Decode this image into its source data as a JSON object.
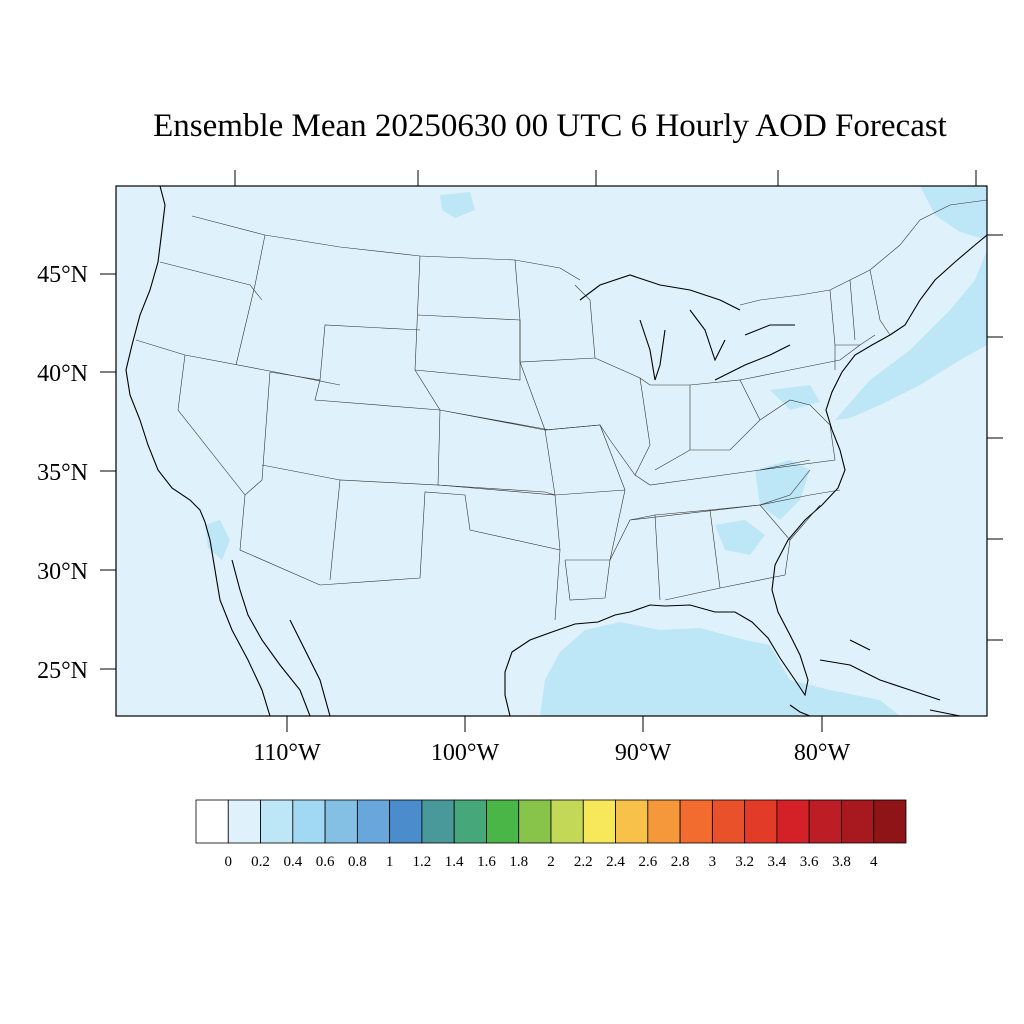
{
  "title": "Ensemble Mean 20250630 00 UTC 6 Hourly AOD Forecast",
  "map": {
    "background_color": "#dff2fb",
    "lat_labels": [
      "45°N",
      "40°N",
      "35°N",
      "30°N",
      "25°N"
    ],
    "lon_labels": [
      "110°W",
      "100°W",
      "90°W",
      "80°W"
    ]
  },
  "colorbar": {
    "labels": [
      "0",
      "0.2",
      "0.4",
      "0.6",
      "0.8",
      "1",
      "1.2",
      "1.4",
      "1.6",
      "1.8",
      "2",
      "2.2",
      "2.4",
      "2.6",
      "2.8",
      "3",
      "3.2",
      "3.4",
      "3.6",
      "3.8",
      "4"
    ],
    "colors": [
      "#ffffff",
      "#dff2fb",
      "#bde6f7",
      "#a1d9f4",
      "#84bfe4",
      "#69a6db",
      "#4a8ccc",
      "#49999b",
      "#46a87a",
      "#4bb648",
      "#88c44a",
      "#c4d858",
      "#f7e85a",
      "#f7c14a",
      "#f5983c",
      "#f26b2f",
      "#e9512b",
      "#e23b28",
      "#d42127",
      "#bd1d25",
      "#a8181f",
      "#8e1418"
    ]
  }
}
